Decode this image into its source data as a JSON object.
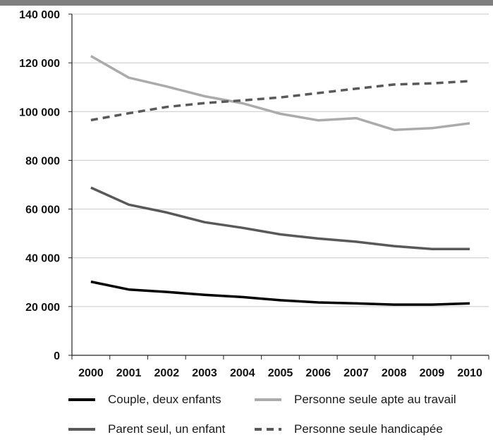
{
  "chart_data": {
    "type": "line",
    "title": "",
    "xlabel": "",
    "ylabel": "",
    "x": [
      "2000",
      "2001",
      "2002",
      "2003",
      "2004",
      "2005",
      "2006",
      "2007",
      "2008",
      "2009",
      "2010"
    ],
    "ylim": [
      0,
      140000
    ],
    "yticks": [
      0,
      20000,
      40000,
      60000,
      80000,
      100000,
      120000,
      140000
    ],
    "ytick_labels": [
      "0",
      "20 000",
      "40 000",
      "60 000",
      "80 000",
      "100 000",
      "120 000",
      "140 000"
    ],
    "grid": true,
    "legend_position": "bottom",
    "series": [
      {
        "name": "Couple, deux enfants",
        "color": "#000000",
        "dash": "solid",
        "values": [
          30200,
          27000,
          26000,
          24800,
          23900,
          22600,
          21700,
          21300,
          20800,
          20800,
          21300
        ]
      },
      {
        "name": "Personne seule apte au travail",
        "color": "#ababab",
        "dash": "solid",
        "values": [
          122800,
          113900,
          110300,
          106300,
          103400,
          99100,
          96400,
          97300,
          92500,
          93200,
          95200
        ]
      },
      {
        "name": "Parent seul, un enfant",
        "color": "#595959",
        "dash": "solid",
        "values": [
          68800,
          61800,
          58600,
          54600,
          52300,
          49600,
          47900,
          46600,
          44800,
          43600,
          43600
        ]
      },
      {
        "name": "Personne seule handicapée",
        "color": "#595959",
        "dash": "dashed",
        "values": [
          96500,
          99300,
          101900,
          103500,
          104600,
          105800,
          107600,
          109400,
          111100,
          111600,
          112500
        ]
      }
    ]
  }
}
